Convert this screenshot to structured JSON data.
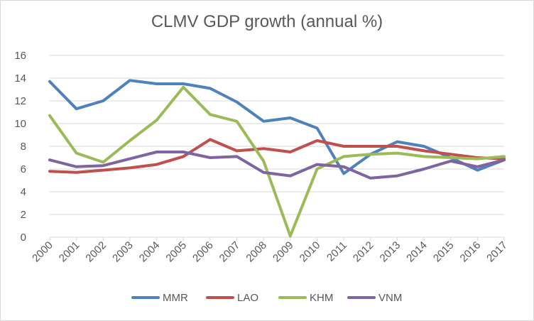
{
  "chart_data": {
    "type": "line",
    "title": "CLMV GDP growth (annual %)",
    "xlabel": "",
    "ylabel": "",
    "ylim": [
      0,
      16
    ],
    "yticks": [
      "0",
      "2",
      "4",
      "6",
      "8",
      "10",
      "12",
      "14",
      "16"
    ],
    "categories": [
      "2000",
      "2001",
      "2002",
      "2003",
      "2004",
      "2005",
      "2006",
      "2007",
      "2008",
      "2009",
      "2010",
      "2011",
      "2012",
      "2013",
      "2014",
      "2015",
      "2016",
      "2017"
    ],
    "grid": true,
    "legend": "bottom",
    "series": [
      {
        "name": "MMR",
        "color": "#4f81bd",
        "values": [
          13.7,
          11.3,
          12.0,
          13.8,
          13.5,
          13.5,
          13.1,
          11.9,
          10.2,
          10.5,
          9.6,
          5.6,
          7.3,
          8.4,
          8.0,
          7.0,
          5.9,
          6.8
        ]
      },
      {
        "name": "LAO",
        "color": "#c0504d",
        "values": [
          5.8,
          5.7,
          5.9,
          6.1,
          6.4,
          7.1,
          8.6,
          7.6,
          7.8,
          7.5,
          8.5,
          8.0,
          8.0,
          8.0,
          7.6,
          7.3,
          7.0,
          6.9
        ]
      },
      {
        "name": "KHM",
        "color": "#9bbb59",
        "values": [
          10.7,
          7.4,
          6.6,
          8.5,
          10.3,
          13.2,
          10.8,
          10.2,
          6.7,
          0.1,
          6.0,
          7.1,
          7.3,
          7.4,
          7.1,
          7.0,
          6.9,
          7.1
        ]
      },
      {
        "name": "VNM",
        "color": "#8064a2",
        "values": [
          6.8,
          6.2,
          6.3,
          6.9,
          7.5,
          7.5,
          7.0,
          7.1,
          5.7,
          5.4,
          6.4,
          6.2,
          5.2,
          5.4,
          6.0,
          6.7,
          6.2,
          6.8
        ]
      }
    ]
  }
}
